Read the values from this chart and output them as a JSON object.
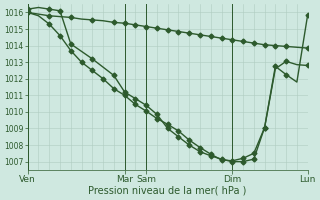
{
  "bg_color": "#cfe8e0",
  "line_color": "#2d5a2d",
  "grid_color_minor": "#b0ccc0",
  "grid_color_major": "#90b8a8",
  "xlabel": "Pression niveau de la mer( hPa )",
  "ylim": [
    1006.5,
    1016.5
  ],
  "xlim": [
    0,
    13
  ],
  "xlabel_fontsize": 7,
  "ytick_fontsize": 5.5,
  "xtick_fontsize": 6.5,
  "linewidth": 1.0,
  "markersize": 2.5,
  "vlines": [
    0,
    4.5,
    5.5,
    9.5,
    13
  ],
  "xtick_positions": [
    0,
    4.5,
    5.5,
    9.5,
    13
  ],
  "xtick_labels": [
    "Ven",
    "Mar",
    "Sam",
    "Dim",
    "Lun"
  ],
  "lineA_x": [
    0,
    0.5,
    1,
    1.5,
    2,
    2.5,
    3,
    3.5,
    4,
    4.5,
    5,
    5.5,
    6,
    6.5,
    7,
    7.5,
    8,
    8.5,
    9,
    9.5,
    10,
    10.5,
    11,
    11.5,
    12,
    12.5,
    13
  ],
  "lineA_y": [
    1016.0,
    1015.9,
    1015.8,
    1015.75,
    1015.7,
    1015.6,
    1015.55,
    1015.5,
    1015.4,
    1015.35,
    1015.25,
    1015.15,
    1015.05,
    1014.95,
    1014.85,
    1014.75,
    1014.65,
    1014.55,
    1014.45,
    1014.35,
    1014.25,
    1014.15,
    1014.05,
    1014.0,
    1013.95,
    1013.9,
    1013.85
  ],
  "lineA_marker_x": [
    0,
    1,
    2,
    3,
    4,
    4.5,
    5,
    5.5,
    6,
    6.5,
    7,
    7.5,
    8,
    8.5,
    9,
    9.5,
    10,
    10.5,
    11,
    11.5,
    12,
    13
  ],
  "lineA_marker_y": [
    1016.0,
    1015.8,
    1015.7,
    1015.55,
    1015.4,
    1015.35,
    1015.25,
    1015.15,
    1015.05,
    1014.95,
    1014.85,
    1014.75,
    1014.65,
    1014.55,
    1014.45,
    1014.35,
    1014.25,
    1014.15,
    1014.05,
    1014.0,
    1013.95,
    1013.85
  ],
  "lineB_x": [
    0,
    0.5,
    1,
    1.5,
    2,
    2.5,
    3,
    3.5,
    4,
    4.5,
    5,
    5.5,
    6,
    6.5,
    7,
    7.5,
    8,
    8.5,
    9,
    9.5,
    10,
    10.5,
    11,
    11.5,
    12,
    12.5,
    13
  ],
  "lineB_y": [
    1016.0,
    1015.8,
    1015.3,
    1014.6,
    1013.7,
    1013.0,
    1012.5,
    1012.0,
    1011.4,
    1011.0,
    1010.45,
    1010.05,
    1009.6,
    1009.25,
    1008.85,
    1008.3,
    1007.85,
    1007.45,
    1007.1,
    1007.05,
    1007.2,
    1007.5,
    1009.05,
    1012.6,
    1013.05,
    1012.85,
    1012.8
  ],
  "lineB_marker_x": [
    0,
    1,
    1.5,
    2,
    2.5,
    3,
    3.5,
    4,
    4.5,
    5,
    5.5,
    6,
    6.5,
    7,
    7.5,
    8,
    8.5,
    9,
    9.5,
    10,
    10.5,
    11,
    12,
    13
  ],
  "lineB_marker_y": [
    1016.0,
    1015.3,
    1014.6,
    1013.7,
    1013.0,
    1012.5,
    1012.0,
    1011.4,
    1011.0,
    1010.45,
    1010.05,
    1009.6,
    1009.25,
    1008.85,
    1008.3,
    1007.85,
    1007.45,
    1007.1,
    1007.05,
    1007.2,
    1007.5,
    1009.05,
    1013.05,
    1012.8
  ],
  "lineC_x": [
    0,
    0.5,
    1,
    1.5,
    2,
    3,
    4,
    4.5,
    5,
    5.5,
    6,
    6.5,
    7,
    7.5,
    8,
    8.5,
    9,
    9.5,
    10,
    10.5,
    11,
    11.5,
    12,
    12.5,
    13
  ],
  "lineC_y": [
    1016.2,
    1016.3,
    1016.2,
    1016.1,
    1014.1,
    1013.2,
    1012.2,
    1011.2,
    1010.8,
    1010.4,
    1009.85,
    1009.0,
    1008.5,
    1008.0,
    1007.6,
    1007.35,
    1007.15,
    1007.0,
    1007.0,
    1007.15,
    1009.05,
    1012.75,
    1012.25,
    1011.8,
    1015.85
  ],
  "lineC_marker_x": [
    0,
    1,
    1.5,
    2,
    3,
    4,
    4.5,
    5,
    5.5,
    6,
    6.5,
    7,
    7.5,
    8,
    8.5,
    9,
    9.5,
    10,
    10.5,
    11,
    11.5,
    12,
    13
  ],
  "lineC_marker_y": [
    1016.2,
    1016.2,
    1016.1,
    1014.1,
    1013.2,
    1012.2,
    1011.2,
    1010.8,
    1010.4,
    1009.85,
    1009.0,
    1008.5,
    1008.0,
    1007.6,
    1007.35,
    1007.15,
    1007.0,
    1007.0,
    1007.15,
    1009.05,
    1012.75,
    1012.25,
    1015.85
  ]
}
